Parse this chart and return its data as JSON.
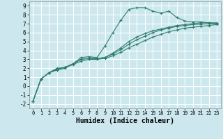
{
  "title": "",
  "xlabel": "Humidex (Indice chaleur)",
  "bg_color": "#cce8ee",
  "grid_color": "#ffffff",
  "line_color": "#2e7d6e",
  "marker": "+",
  "xlim": [
    -0.5,
    23.5
  ],
  "ylim": [
    -2.5,
    9.5
  ],
  "xticks": [
    0,
    1,
    2,
    3,
    4,
    5,
    6,
    7,
    8,
    9,
    10,
    11,
    12,
    13,
    14,
    15,
    16,
    17,
    18,
    19,
    20,
    21,
    22,
    23
  ],
  "yticks": [
    -2,
    -1,
    0,
    1,
    2,
    3,
    4,
    5,
    6,
    7,
    8,
    9
  ],
  "series": [
    {
      "x": [
        0,
        1,
        2,
        3,
        4,
        5,
        6,
        7,
        8,
        9,
        10,
        11,
        12,
        13,
        14,
        15,
        16,
        17,
        18,
        19,
        20,
        21,
        22,
        23
      ],
      "y": [
        -1.7,
        0.8,
        1.5,
        1.8,
        2.0,
        2.5,
        3.2,
        3.3,
        3.2,
        4.5,
        6.0,
        7.4,
        8.6,
        8.8,
        8.8,
        8.4,
        8.2,
        8.4,
        7.7,
        7.3,
        7.2,
        7.2,
        7.1,
        7.0
      ]
    },
    {
      "x": [
        0,
        1,
        2,
        3,
        4,
        5,
        6,
        7,
        8,
        9,
        10,
        11,
        12,
        13,
        14,
        15,
        16,
        17,
        18,
        19,
        20,
        21,
        22,
        23
      ],
      "y": [
        -1.7,
        0.8,
        1.5,
        2.0,
        2.1,
        2.4,
        2.8,
        3.0,
        3.0,
        3.1,
        3.4,
        3.8,
        4.3,
        4.7,
        5.1,
        5.5,
        5.8,
        6.1,
        6.3,
        6.5,
        6.6,
        6.7,
        6.8,
        6.9
      ]
    },
    {
      "x": [
        0,
        1,
        2,
        3,
        4,
        5,
        6,
        7,
        8,
        9,
        10,
        11,
        12,
        13,
        14,
        15,
        16,
        17,
        18,
        19,
        20,
        21,
        22,
        23
      ],
      "y": [
        -1.7,
        0.8,
        1.5,
        1.9,
        2.1,
        2.5,
        3.0,
        3.1,
        3.1,
        3.2,
        3.6,
        4.1,
        4.7,
        5.2,
        5.6,
        6.0,
        6.3,
        6.5,
        6.7,
        6.8,
        6.9,
        6.95,
        7.0,
        7.0
      ]
    },
    {
      "x": [
        0,
        1,
        2,
        3,
        4,
        5,
        6,
        7,
        8,
        9,
        10,
        11,
        12,
        13,
        14,
        15,
        16,
        17,
        18,
        19,
        20,
        21,
        22,
        23
      ],
      "y": [
        -1.7,
        0.8,
        1.5,
        1.9,
        2.1,
        2.5,
        3.0,
        3.1,
        3.1,
        3.2,
        3.7,
        4.3,
        5.0,
        5.5,
        5.9,
        6.2,
        6.4,
        6.6,
        6.8,
        6.9,
        7.0,
        7.1,
        7.1,
        7.1
      ]
    }
  ]
}
